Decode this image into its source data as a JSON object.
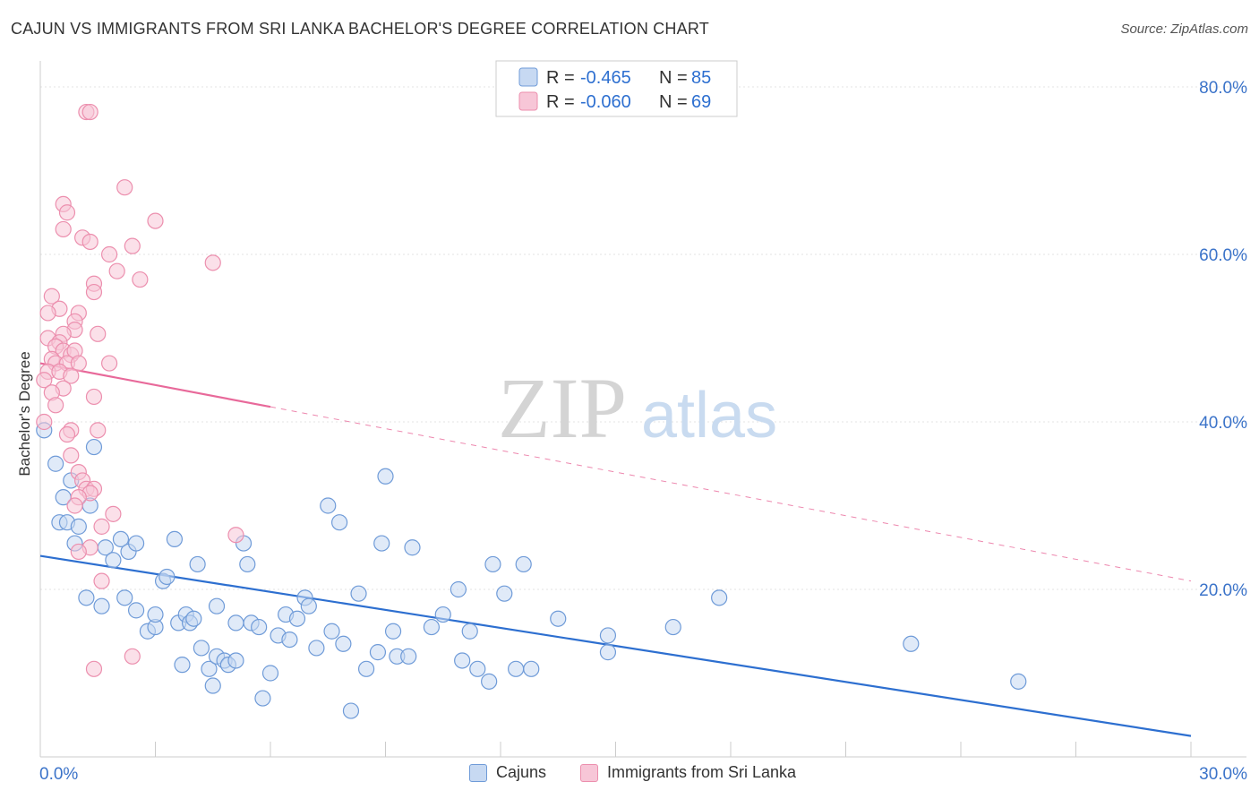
{
  "header": {
    "title": "CAJUN VS IMMIGRANTS FROM SRI LANKA BACHELOR'S DEGREE CORRELATION CHART",
    "source": "Source: ZipAtlas.com"
  },
  "watermark": {
    "part1": "ZIP",
    "part2": "atlas"
  },
  "chart_data": {
    "type": "scatter",
    "title": "CAJUN VS IMMIGRANTS FROM SRI LANKA BACHELOR'S DEGREE CORRELATION CHART",
    "xlabel": "",
    "ylabel": "Bachelor's Degree",
    "xlim": [
      0,
      30
    ],
    "ylim": [
      0,
      80
    ],
    "x_tick_labels": [
      "0.0%",
      "30.0%"
    ],
    "y_tick_labels": [
      "80.0%",
      "60.0%",
      "40.0%",
      "20.0%"
    ],
    "grid": true,
    "legend_position": "top-center",
    "stats": [
      {
        "r_label": "R =",
        "r_value": "-0.465",
        "n_label": "N =",
        "n_value": "85"
      },
      {
        "r_label": "R =",
        "r_value": "-0.060",
        "n_label": "N =",
        "n_value": "69"
      }
    ],
    "series": [
      {
        "name": "Cajuns",
        "color": "#6f9bd8",
        "fill": "#c7d9f2",
        "line_color": "#2d6fd0",
        "trend": {
          "x0": 0,
          "y0": 24.0,
          "x1": 30,
          "y1": 2.5,
          "dashed_from": null
        },
        "points": [
          [
            0.1,
            39
          ],
          [
            0.4,
            35
          ],
          [
            0.6,
            31
          ],
          [
            0.8,
            33
          ],
          [
            0.5,
            28
          ],
          [
            0.7,
            28
          ],
          [
            1.0,
            27.5
          ],
          [
            0.9,
            25.5
          ],
          [
            1.3,
            30
          ],
          [
            1.4,
            37
          ],
          [
            1.7,
            25
          ],
          [
            1.9,
            23.5
          ],
          [
            2.1,
            26
          ],
          [
            2.3,
            24.5
          ],
          [
            2.5,
            25.5
          ],
          [
            3.5,
            26
          ],
          [
            1.2,
            19
          ],
          [
            1.6,
            18
          ],
          [
            2.2,
            19
          ],
          [
            2.5,
            17.5
          ],
          [
            2.8,
            15
          ],
          [
            3.0,
            15.5
          ],
          [
            3.0,
            17
          ],
          [
            3.2,
            21
          ],
          [
            3.3,
            21.5
          ],
          [
            3.6,
            16
          ],
          [
            3.7,
            11
          ],
          [
            3.8,
            17
          ],
          [
            3.9,
            16
          ],
          [
            4.0,
            16.5
          ],
          [
            4.1,
            23
          ],
          [
            4.2,
            13
          ],
          [
            4.4,
            10.5
          ],
          [
            4.5,
            8.5
          ],
          [
            4.6,
            18
          ],
          [
            4.6,
            12
          ],
          [
            4.8,
            11.5
          ],
          [
            4.9,
            11
          ],
          [
            5.1,
            16
          ],
          [
            5.1,
            11.5
          ],
          [
            5.3,
            25.5
          ],
          [
            5.4,
            23
          ],
          [
            5.5,
            16
          ],
          [
            5.7,
            15.5
          ],
          [
            5.8,
            7
          ],
          [
            6.0,
            10
          ],
          [
            6.2,
            14.5
          ],
          [
            6.4,
            17
          ],
          [
            6.5,
            14
          ],
          [
            6.7,
            16.5
          ],
          [
            6.9,
            19
          ],
          [
            7.0,
            18
          ],
          [
            7.2,
            13
          ],
          [
            7.5,
            30
          ],
          [
            7.6,
            15
          ],
          [
            7.8,
            28
          ],
          [
            7.9,
            13.5
          ],
          [
            8.1,
            5.5
          ],
          [
            8.3,
            19.5
          ],
          [
            8.5,
            10.5
          ],
          [
            8.8,
            12.5
          ],
          [
            8.9,
            25.5
          ],
          [
            9.0,
            33.5
          ],
          [
            9.2,
            15
          ],
          [
            9.3,
            12
          ],
          [
            9.6,
            12
          ],
          [
            9.7,
            25
          ],
          [
            10.2,
            15.5
          ],
          [
            10.5,
            17
          ],
          [
            10.9,
            20
          ],
          [
            11.0,
            11.5
          ],
          [
            11.2,
            15
          ],
          [
            11.4,
            10.5
          ],
          [
            11.7,
            9
          ],
          [
            11.8,
            23
          ],
          [
            12.1,
            19.5
          ],
          [
            12.4,
            10.5
          ],
          [
            12.6,
            23
          ],
          [
            12.8,
            10.5
          ],
          [
            13.5,
            16.5
          ],
          [
            14.8,
            12.5
          ],
          [
            14.8,
            14.5
          ],
          [
            16.5,
            15.5
          ],
          [
            17.7,
            19
          ],
          [
            22.7,
            13.5
          ],
          [
            25.5,
            9
          ]
        ]
      },
      {
        "name": "Immigrants from Sri Lanka",
        "color": "#ec8fae",
        "fill": "#f7c6d7",
        "line_color": "#e8699a",
        "trend": {
          "x0": 0,
          "y0": 47.0,
          "x1": 30,
          "y1": 21.0,
          "dashed_from": 6.0
        },
        "points": [
          [
            1.2,
            77
          ],
          [
            1.3,
            77
          ],
          [
            2.2,
            68
          ],
          [
            0.6,
            66
          ],
          [
            0.7,
            65
          ],
          [
            0.6,
            63
          ],
          [
            3.0,
            64
          ],
          [
            1.1,
            62
          ],
          [
            1.3,
            61.5
          ],
          [
            2.4,
            61
          ],
          [
            1.8,
            60
          ],
          [
            2.0,
            58
          ],
          [
            4.5,
            59
          ],
          [
            2.6,
            57
          ],
          [
            1.4,
            56.5
          ],
          [
            1.4,
            55.5
          ],
          [
            0.3,
            55
          ],
          [
            0.5,
            53.5
          ],
          [
            0.2,
            53
          ],
          [
            1.0,
            53
          ],
          [
            0.9,
            52
          ],
          [
            0.9,
            51
          ],
          [
            0.6,
            50.5
          ],
          [
            0.2,
            50
          ],
          [
            1.5,
            50.5
          ],
          [
            0.5,
            49.5
          ],
          [
            0.4,
            49
          ],
          [
            0.6,
            48.5
          ],
          [
            0.8,
            48
          ],
          [
            0.9,
            48.5
          ],
          [
            0.3,
            47.5
          ],
          [
            0.4,
            47
          ],
          [
            0.7,
            47
          ],
          [
            1.0,
            47
          ],
          [
            1.8,
            47
          ],
          [
            0.2,
            46
          ],
          [
            0.5,
            46
          ],
          [
            0.8,
            45.5
          ],
          [
            0.1,
            45
          ],
          [
            0.6,
            44
          ],
          [
            0.3,
            43.5
          ],
          [
            1.4,
            43
          ],
          [
            0.4,
            42
          ],
          [
            0.1,
            40
          ],
          [
            0.8,
            39
          ],
          [
            1.5,
            39
          ],
          [
            0.7,
            38.5
          ],
          [
            0.8,
            36
          ],
          [
            1.0,
            34
          ],
          [
            1.1,
            33
          ],
          [
            1.2,
            32
          ],
          [
            1.4,
            32
          ],
          [
            1.3,
            31.5
          ],
          [
            1.0,
            31
          ],
          [
            0.9,
            30
          ],
          [
            1.9,
            29
          ],
          [
            1.6,
            27.5
          ],
          [
            5.1,
            26.5
          ],
          [
            1.3,
            25
          ],
          [
            1.0,
            24.5
          ],
          [
            1.6,
            21
          ],
          [
            1.4,
            10.5
          ],
          [
            2.4,
            12
          ]
        ]
      }
    ]
  }
}
